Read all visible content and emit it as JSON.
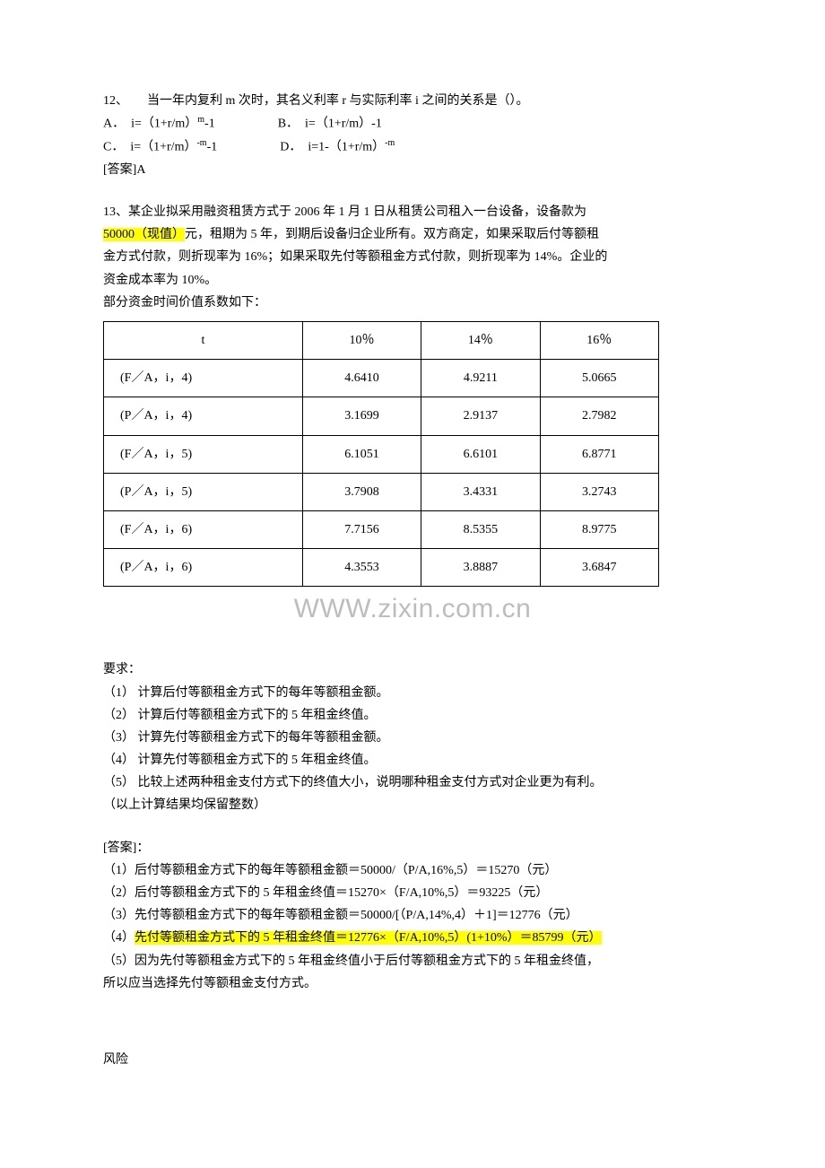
{
  "q12": {
    "stem_prefix": "12、",
    "stem_text": "当一年内复利 m 次时，其名义利率 r 与实际利率 i 之间的关系是（）。",
    "optA_label": "A．",
    "optA_pre": "i=（1+r/m）",
    "optA_sup": "m",
    "optA_post": "-1",
    "optB_label": "B．",
    "optB_text": "i=（1+r/m）-1",
    "optC_label": "C．",
    "optC_pre": "i=（1+r/m）",
    "optC_sup": "-m",
    "optC_post": "-1",
    "optD_label": "D．",
    "optD_pre": "i=1-（1+r/m）",
    "optD_sup": "-m",
    "answer": "[答案]A"
  },
  "q13": {
    "stem_line1_pre": "13、某企业拟采用融资租赁方式于 2006 年 1 月 1 日从租赁公司租入一台设备，设备款为",
    "stem_line2_hl": "50000（现值）",
    "stem_line2_post": "元，租期为 5 年，到期后设备归企业所有。双方商定，如果采取后付等额租",
    "stem_line3": "金方式付款，则折现率为 16%；如果采取先付等额租金方式付款，则折现率为 14%。企业的",
    "stem_line4": "资金成本率为 10%。",
    "table_caption": "部分资金时间价值系数如下：",
    "table": {
      "headers": [
        "t",
        "10％",
        "14％",
        "16％"
      ],
      "rows": [
        [
          "(F／A，i，4)",
          "4.6410",
          "4.9211",
          "5.0665"
        ],
        [
          "(P／A，i，4)",
          "3.1699",
          "2.9137",
          "2.7982"
        ],
        [
          "(F／A，i，5)",
          "6.1051",
          "6.6101",
          "6.8771"
        ],
        [
          "(P／A，i，5)",
          "3.7908",
          "3.4331",
          "3.2743"
        ],
        [
          "(F／A，i，6)",
          "7.7156",
          "8.5355",
          "8.9775"
        ],
        [
          "(P／A，i，6)",
          "4.3553",
          "3.8887",
          "3.6847"
        ]
      ]
    },
    "watermark": "WWW.zixin.com.cn",
    "req_title": "要求：",
    "req1": "（1） 计算后付等额租金方式下的每年等额租金额。",
    "req2": "（2） 计算后付等额租金方式下的 5 年租金终值。",
    "req3": "（3） 计算先付等额租金方式下的每年等额租金额。",
    "req4": "（4） 计算先付等额租金方式下的 5 年租金终值。",
    "req5": "（5） 比较上述两种租金支付方式下的终值大小，说明哪种租金支付方式对企业更为有利。",
    "req_note": "（以上计算结果均保留整数）",
    "ans_title": "[答案]：",
    "ans1": "（1）后付等额租金方式下的每年等额租金额＝50000/（P/A,16%,5）＝15270（元）",
    "ans2": "（2）后付等额租金方式下的 5 年租金终值＝15270×（F/A,10%,5）＝93225（元）",
    "ans3": "（3）先付等额租金方式下的每年等额租金额＝50000/[（P/A,14%,4）＋1]＝12776（元）",
    "ans4_pre": "（4）",
    "ans4_hl": "先付等额租金方式下的 5 年租金终值＝12776×（F/A,10%,5）(1+10%）＝85799（元）",
    "ans5a": "（5）因为先付等额租金方式下的 5 年租金终值小于后付等额租金方式下的 5 年租金终值，",
    "ans5b": "所以应当选择先付等额租金支付方式。"
  },
  "footer": "风险"
}
